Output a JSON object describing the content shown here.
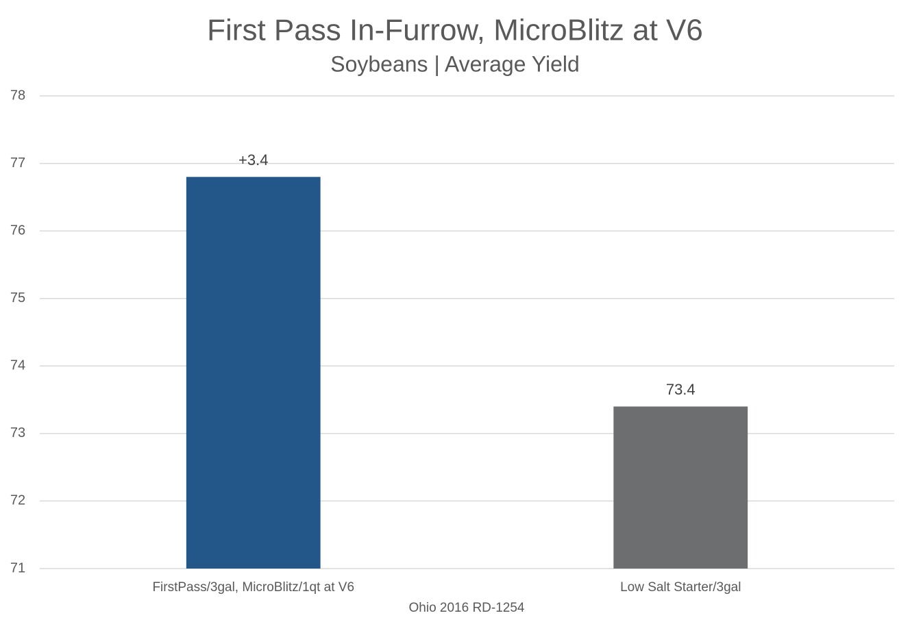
{
  "chart_data": {
    "type": "bar",
    "title": "First Pass In-Furrow, MicroBlitz at V6",
    "subtitle": "Soybeans | Average Yield",
    "x_label": "Ohio 2016 RD-1254",
    "categories": [
      "FirstPass/3gal, MicroBlitz/1qt at V6",
      "Low Salt Starter/3gal"
    ],
    "values": [
      76.8,
      73.4
    ],
    "colors": [
      "#245789",
      "#6c6e6f"
    ],
    "data_labels": [
      false,
      true
    ],
    "annotations": [
      {
        "text": "+3.4",
        "category": 0
      }
    ],
    "ylim": [
      71,
      78
    ],
    "yticks": [
      71,
      72,
      73,
      74,
      75,
      76,
      77,
      78
    ],
    "grid": true
  }
}
